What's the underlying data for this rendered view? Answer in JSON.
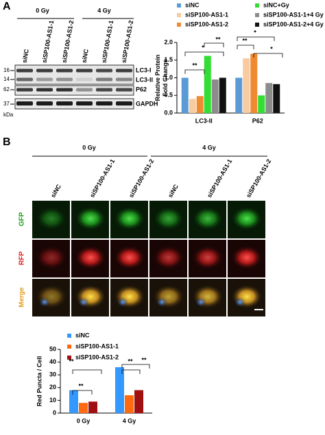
{
  "panel_labels": [
    "A",
    "B"
  ],
  "blot": {
    "groups": [
      "0 Gy",
      "4 Gy"
    ],
    "lanes": [
      "siNC",
      "siSP100-AS1-1",
      "siSP100-AS1-2",
      "siNC",
      "siSP100-AS1-1",
      "siSP100-AS1-2"
    ],
    "bands": [
      "LC3-I",
      "LC3-II",
      "P62",
      "GAPDH"
    ],
    "markers": [
      "16",
      "14",
      "62",
      "37"
    ],
    "marker_unit": "kDa"
  },
  "microscopy": {
    "groups": [
      "0 Gy",
      "4 Gy"
    ],
    "columns": [
      "siNC",
      "siSP100-AS1-1",
      "siSP100-AS1-2",
      "siNC",
      "siSP100-AS1-1",
      "siSP100-AS1-2"
    ],
    "rows": [
      "GFP",
      "RFP",
      "Merge"
    ]
  },
  "chart_data": [
    {
      "type": "bar",
      "y_label": [
        "Relative Protein",
        "Fold Change"
      ],
      "categories": [
        "LC3-II",
        "P62"
      ],
      "series": [
        {
          "name": "siNC",
          "color": "#5b9bd5",
          "values": [
            1.0,
            1.0
          ]
        },
        {
          "name": "siSP100-AS1-1",
          "color": "#f8cba0",
          "values": [
            0.4,
            1.55
          ]
        },
        {
          "name": "siSP100-AS1-2",
          "color": "#f08a30",
          "values": [
            0.48,
            1.68
          ]
        },
        {
          "name": "siNC+Gy",
          "color": "#33dd33",
          "values": [
            1.62,
            0.5
          ]
        },
        {
          "name": "siSP100-AS1-1+4 Gy",
          "color": "#8c8c8c",
          "values": [
            0.95,
            0.85
          ]
        },
        {
          "name": "siSP100-AS1-2+4 Gy",
          "color": "#111111",
          "values": [
            1.0,
            0.82
          ]
        }
      ],
      "ylim": [
        0,
        2.0
      ],
      "yticks": [
        {
          "value": 0,
          "label": "0.0"
        },
        {
          "value": 0.5,
          "label": "0.5"
        },
        {
          "value": 1.0,
          "label": "1.0"
        },
        {
          "value": 1.5,
          "label": "1.5"
        },
        {
          "value": 2.0,
          "label": "2.0"
        }
      ],
      "annotations": [
        "**",
        "*",
        "**",
        "**",
        "*",
        "*"
      ]
    },
    {
      "type": "bar",
      "y_label": [
        "Red Puncta / Cell"
      ],
      "categories": [
        "0 Gy",
        "4 Gy"
      ],
      "series": [
        {
          "name": "siNC",
          "color": "#3399ff",
          "values": [
            18,
            36
          ]
        },
        {
          "name": "siSP100-AS1-1",
          "color": "#ff6a10",
          "values": [
            8,
            14
          ]
        },
        {
          "name": "siSP100-AS1-2",
          "color": "#a01010",
          "values": [
            9,
            18
          ]
        }
      ],
      "ylim": [
        0,
        50
      ],
      "yticks": [
        0,
        10,
        20,
        30,
        40,
        50
      ],
      "annotations": [
        "**",
        "**",
        "**",
        "**"
      ]
    }
  ]
}
